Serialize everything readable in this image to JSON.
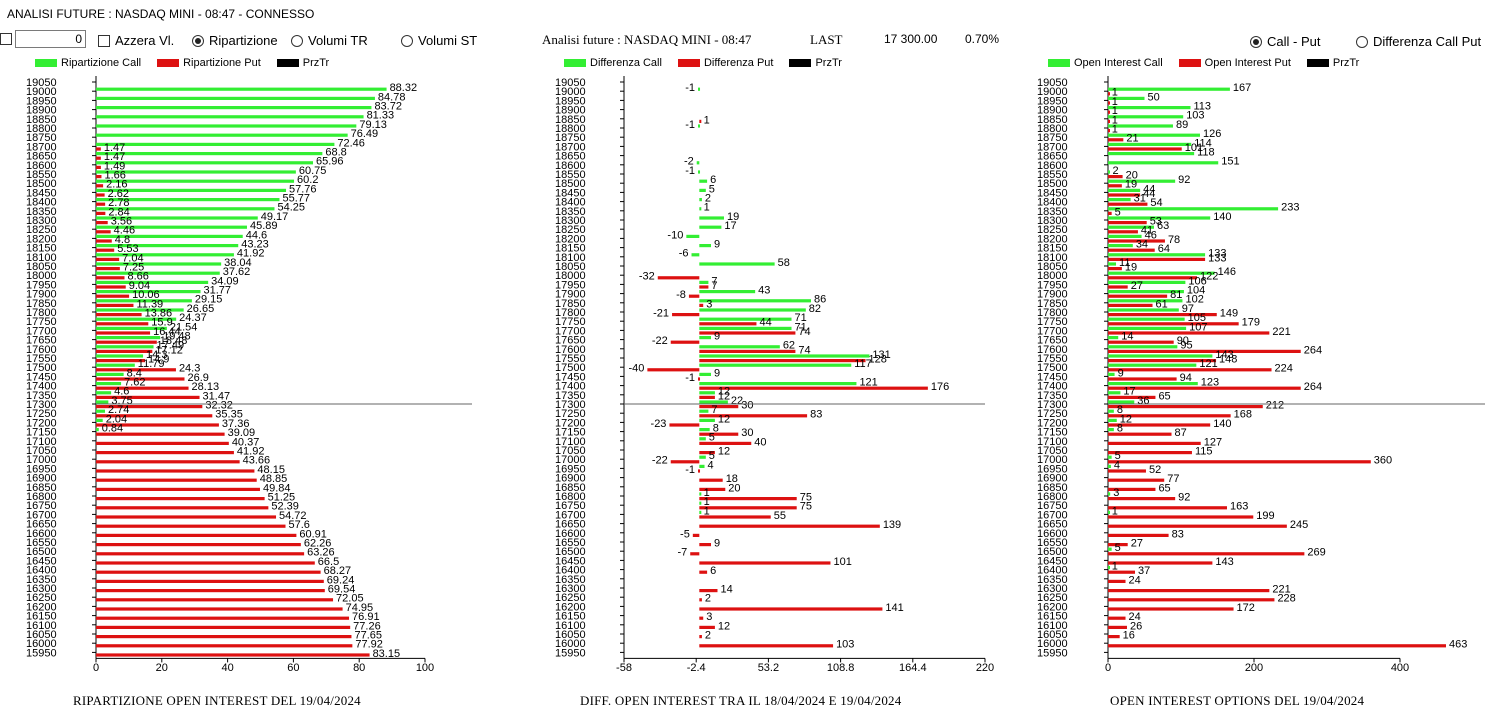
{
  "window_title": "ANALISI FUTURE : NASDAQ MINI - 08:47 - CONNESSO",
  "controls": {
    "number_value": "0",
    "azzera_label": "Azzera Vl.",
    "ripartizione_label": "Ripartizione",
    "volumi_tr_label": "Volumi TR",
    "volumi_st_label": "Volumi ST",
    "call_put_label": "Call - Put",
    "diff_call_put_label": "Differenza Call Put"
  },
  "header": {
    "analysis_label": "Analisi future : NASDAQ MINI - 08:47",
    "last_label": "LAST",
    "last_value": "17 300.00",
    "change_value": "0.70%"
  },
  "legends": {
    "left": {
      "call": "Ripartizione Call",
      "put": "Ripartizione Put",
      "price": "PrzTr"
    },
    "middle": {
      "call": "Differenza Call",
      "put": "Differenza Put",
      "price": "PrzTr"
    },
    "right": {
      "call": "Open Interest Call",
      "put": "Open Interest Put",
      "price": "PrzTr"
    }
  },
  "colors": {
    "call": "#33ee33",
    "put": "#dd1111",
    "price": "#000000"
  },
  "footers": {
    "left": "RIPARTIZIONE OPEN INTEREST DEL 19/04/2024",
    "middle": "DIFF. OPEN INTEREST TRA IL 18/04/2024 E 19/04/2024",
    "right": "OPEN INTEREST OPTIONS DEL 19/04/2024"
  },
  "chart_data": [
    {
      "type": "bar",
      "orientation": "horizontal",
      "strikes": [
        19050,
        19000,
        18950,
        18900,
        18850,
        18800,
        18750,
        18700,
        18650,
        18600,
        18550,
        18500,
        18450,
        18400,
        18350,
        18300,
        18250,
        18200,
        18150,
        18100,
        18050,
        18000,
        17950,
        17900,
        17850,
        17800,
        17750,
        17700,
        17650,
        17600,
        17550,
        17500,
        17450,
        17400,
        17350,
        17300,
        17250,
        17200,
        17150,
        17100,
        17050,
        17000,
        16950,
        16900,
        16850,
        16800,
        16750,
        16700,
        16650,
        16600,
        16550,
        16500,
        16450,
        16400,
        16350,
        16300,
        16250,
        16200,
        16150,
        16100,
        16050,
        16000,
        15950
      ],
      "xticks": [
        "0",
        "20",
        "40",
        "60",
        "80",
        "100"
      ],
      "xlim": [
        0,
        100
      ],
      "price_line": 17300,
      "series": [
        {
          "name": "Ripartizione Call",
          "values": [
            null,
            88.32,
            84.78,
            83.72,
            81.33,
            79.13,
            76.49,
            72.46,
            68.8,
            65.96,
            60.75,
            60.2,
            57.76,
            55.77,
            54.25,
            49.17,
            45.89,
            44.6,
            43.23,
            41.92,
            38.04,
            37.62,
            34.09,
            31.77,
            29.15,
            26.65,
            24.37,
            21.54,
            19.48,
            17.49,
            14.3,
            11.79,
            8.4,
            7.62,
            4.6,
            3.75,
            2.74,
            2.04,
            0.84,
            null,
            null,
            null,
            null,
            null,
            null,
            null,
            null,
            null,
            null,
            null,
            null,
            null,
            null,
            null,
            null,
            null,
            null,
            null,
            null,
            null,
            null,
            null,
            null
          ]
        },
        {
          "name": "Ripartizione Put",
          "values": [
            null,
            null,
            null,
            null,
            null,
            null,
            null,
            1.47,
            1.47,
            1.49,
            1.66,
            2.16,
            2.62,
            2.78,
            2.84,
            3.56,
            4.46,
            4.8,
            5.53,
            7.04,
            7.25,
            8.66,
            9.04,
            10.06,
            11.39,
            13.86,
            15.9,
            16.44,
            18.48,
            17.12,
            14.9,
            24.3,
            26.9,
            28.13,
            31.47,
            32.32,
            35.35,
            37.36,
            39.09,
            40.37,
            41.92,
            43.66,
            48.15,
            48.85,
            49.84,
            51.25,
            52.39,
            54.72,
            57.6,
            60.91,
            62.26,
            63.26,
            66.5,
            68.27,
            69.24,
            69.54,
            72.05,
            74.95,
            76.91,
            77.26,
            77.65,
            77.92,
            83.15
          ]
        }
      ]
    },
    {
      "type": "bar",
      "orientation": "horizontal",
      "strikes": [
        19050,
        19000,
        18950,
        18900,
        18850,
        18800,
        18750,
        18700,
        18650,
        18600,
        18550,
        18500,
        18450,
        18400,
        18350,
        18300,
        18250,
        18200,
        18150,
        18100,
        18050,
        18000,
        17950,
        17900,
        17850,
        17800,
        17750,
        17700,
        17650,
        17600,
        17550,
        17500,
        17450,
        17400,
        17350,
        17300,
        17250,
        17200,
        17150,
        17100,
        17050,
        17000,
        16950,
        16900,
        16850,
        16800,
        16750,
        16700,
        16650,
        16600,
        16550,
        16500,
        16450,
        16400,
        16350,
        16300,
        16250,
        16200,
        16150,
        16100,
        16050,
        16000,
        15950
      ],
      "xticks": [
        "-58",
        "-2.4",
        "53.2",
        "108.8",
        "164.4",
        "220"
      ],
      "xlim": [
        -58,
        220
      ],
      "price_line": 17300,
      "series": [
        {
          "name": "Differenza Call",
          "values": [
            null,
            -1,
            null,
            null,
            null,
            -1,
            null,
            null,
            null,
            -2,
            -1,
            6,
            5,
            2,
            1,
            19,
            17,
            -10,
            9,
            -6,
            58,
            null,
            7,
            43,
            86,
            82,
            71,
            71,
            9,
            62,
            131,
            117,
            9,
            121,
            12,
            22,
            7,
            12,
            8,
            5,
            null,
            5,
            4,
            null,
            null,
            1,
            1,
            1,
            null,
            null,
            null,
            null,
            null,
            null,
            null,
            null,
            null,
            null,
            null,
            null,
            null,
            null,
            null
          ]
        },
        {
          "name": "Differenza Put",
          "values": [
            null,
            null,
            null,
            null,
            1,
            null,
            null,
            null,
            null,
            null,
            null,
            null,
            null,
            null,
            null,
            null,
            null,
            null,
            null,
            null,
            null,
            -32,
            7,
            -8,
            3,
            -21,
            44,
            74,
            -22,
            74,
            128,
            -40,
            -1,
            176,
            12,
            30,
            83,
            -23,
            30,
            40,
            12,
            -22,
            -1,
            18,
            20,
            75,
            75,
            55,
            139,
            -5,
            9,
            -7,
            101,
            6,
            null,
            14,
            2,
            141,
            3,
            12,
            2,
            103,
            null
          ]
        }
      ]
    },
    {
      "type": "bar",
      "orientation": "horizontal",
      "strikes": [
        19050,
        19000,
        18950,
        18900,
        18850,
        18800,
        18750,
        18700,
        18650,
        18600,
        18550,
        18500,
        18450,
        18400,
        18350,
        18300,
        18250,
        18200,
        18150,
        18100,
        18050,
        18000,
        17950,
        17900,
        17850,
        17800,
        17750,
        17700,
        17650,
        17600,
        17550,
        17500,
        17450,
        17400,
        17350,
        17300,
        17250,
        17200,
        17150,
        17100,
        17050,
        17000,
        16950,
        16900,
        16850,
        16800,
        16750,
        16700,
        16650,
        16600,
        16550,
        16500,
        16450,
        16400,
        16350,
        16300,
        16250,
        16200,
        16150,
        16100,
        16050,
        16000,
        15950
      ],
      "xticks": [
        "0",
        "200",
        "400"
      ],
      "xlim": [
        0,
        500
      ],
      "price_line": 17300,
      "series": [
        {
          "name": "Open Interest Call",
          "values": [
            null,
            167,
            50,
            113,
            103,
            89,
            126,
            114,
            118,
            151,
            2,
            92,
            44,
            31,
            233,
            140,
            63,
            46,
            34,
            133,
            11,
            146,
            106,
            104,
            102,
            97,
            105,
            107,
            14,
            95,
            143,
            121,
            9,
            123,
            17,
            36,
            8,
            12,
            8,
            null,
            null,
            5,
            4,
            null,
            null,
            3,
            null,
            1,
            null,
            null,
            null,
            5,
            null,
            1,
            null,
            null,
            null,
            null,
            null,
            null,
            null,
            null,
            null
          ]
        },
        {
          "name": "Open Interest Put",
          "values": [
            null,
            1,
            1,
            1,
            1,
            1,
            21,
            101,
            null,
            null,
            20,
            19,
            44,
            54,
            5,
            53,
            41,
            78,
            64,
            133,
            19,
            122,
            27,
            81,
            61,
            149,
            179,
            221,
            90,
            264,
            148,
            224,
            94,
            264,
            65,
            212,
            168,
            140,
            87,
            127,
            115,
            360,
            52,
            77,
            65,
            92,
            163,
            199,
            245,
            83,
            27,
            269,
            143,
            37,
            24,
            221,
            228,
            172,
            24,
            26,
            16,
            463,
            null
          ]
        }
      ]
    }
  ]
}
